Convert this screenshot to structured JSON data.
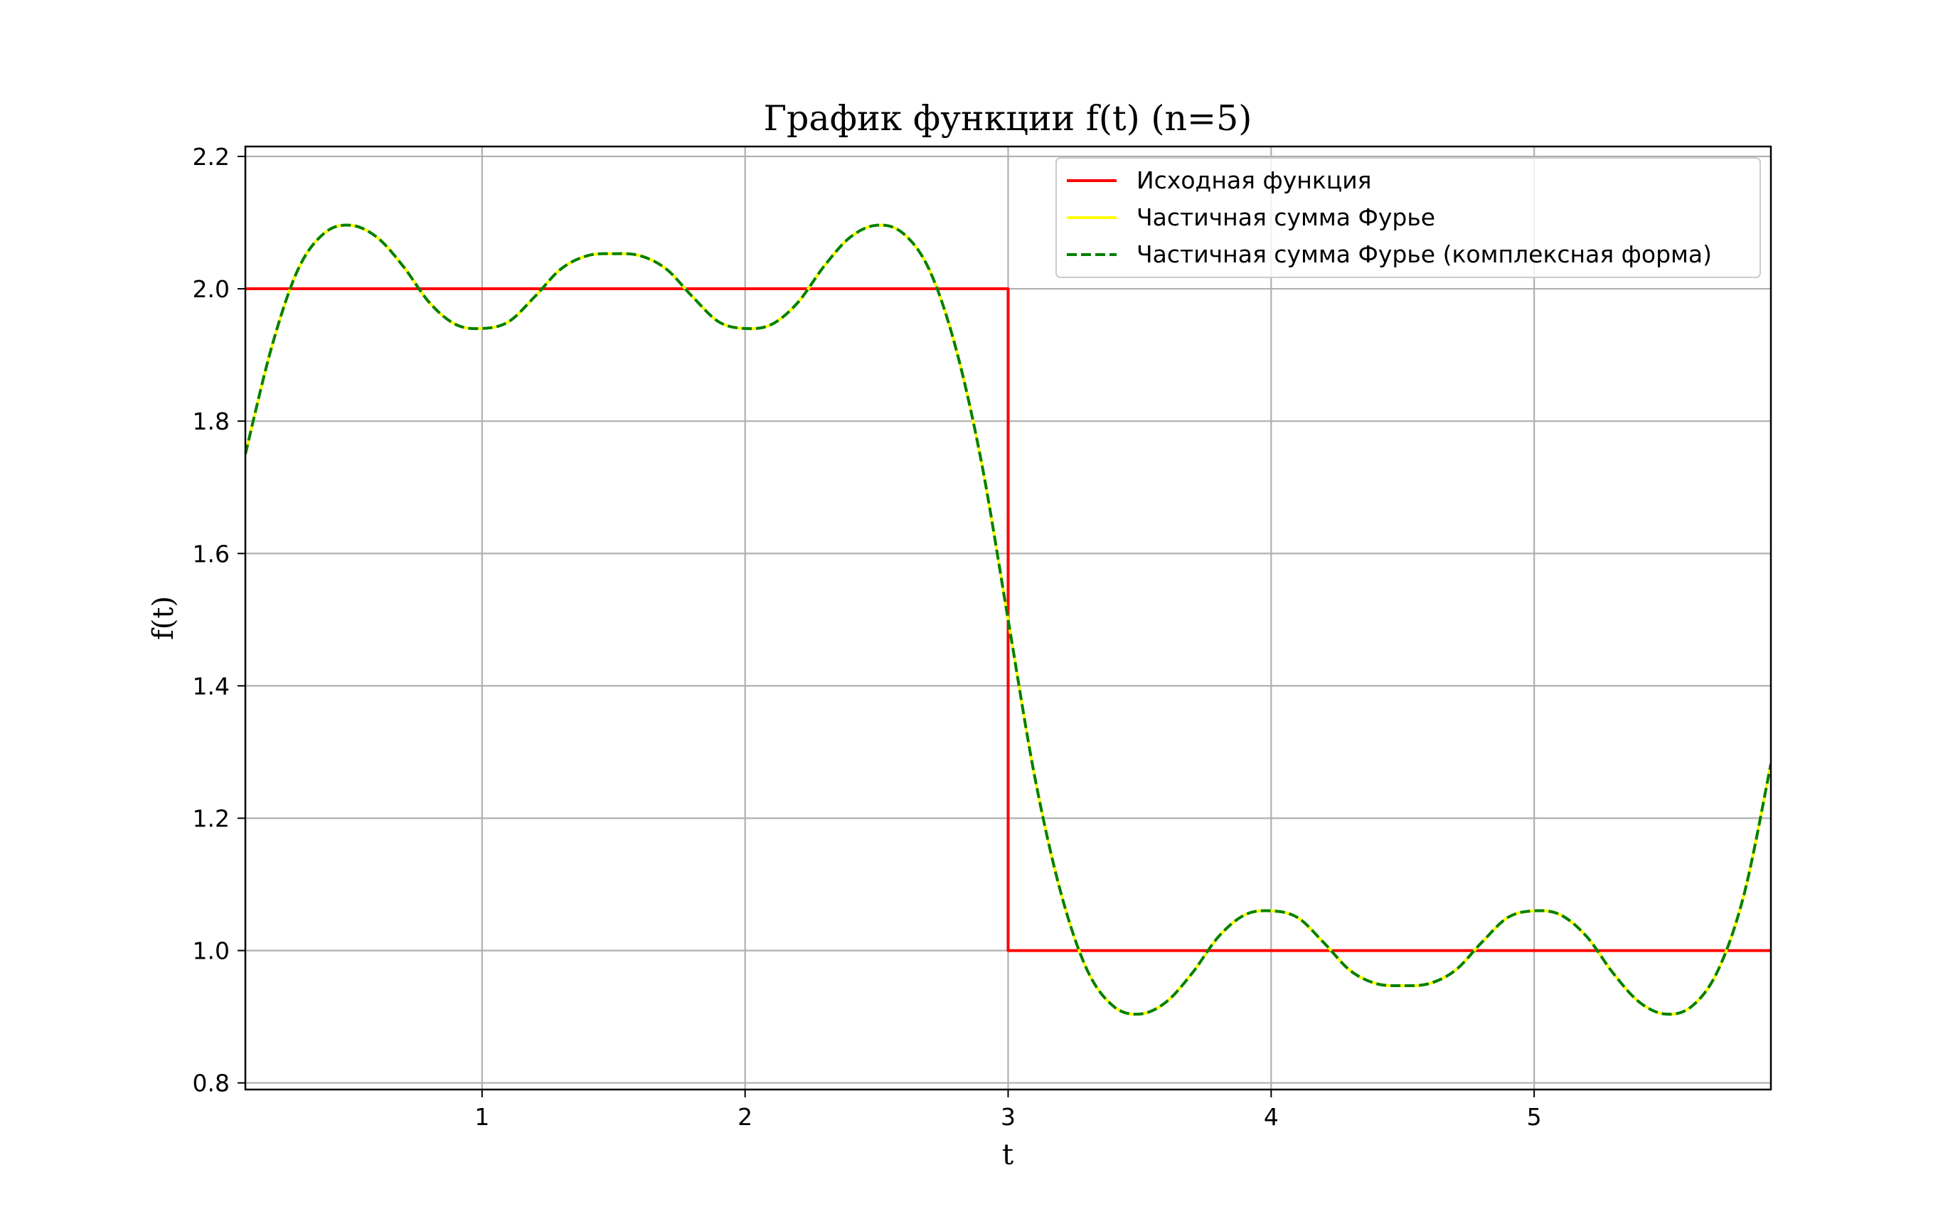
{
  "chart_data": {
    "type": "line",
    "title": "График функции f(t) (n=5)",
    "xlabel": "t",
    "ylabel": "f(t)",
    "xlim": [
      0.1,
      5.9
    ],
    "ylim": [
      0.79,
      2.215
    ],
    "xticks": [
      1,
      2,
      3,
      4,
      5
    ],
    "xtick_labels": [
      "1",
      "2",
      "3",
      "4",
      "5"
    ],
    "yticks": [
      0.8,
      1.0,
      1.2,
      1.4,
      1.6,
      1.8,
      2.0,
      2.2
    ],
    "ytick_labels": [
      "0.8",
      "1.0",
      "1.2",
      "1.4",
      "1.6",
      "1.8",
      "2.0",
      "2.2"
    ],
    "grid": true,
    "legend_position": "top-right",
    "series": [
      {
        "name": "Исходная функция",
        "color": "#ff0000",
        "style": "solid",
        "x": [
          0.1,
          3.0,
          3.0,
          5.9
        ],
        "y": [
          2.0,
          2.0,
          1.0,
          1.0
        ]
      },
      {
        "name": "Частичная сумма Фурье",
        "color": "#ffff00",
        "style": "solid",
        "x": [
          0.1,
          0.2,
          0.3,
          0.4,
          0.5,
          0.6,
          0.7,
          0.8,
          0.9,
          1.0,
          1.1,
          1.2,
          1.3,
          1.4,
          1.5,
          1.6,
          1.7,
          1.8,
          1.9,
          2.0,
          2.1,
          2.2,
          2.3,
          2.4,
          2.5,
          2.6,
          2.7,
          2.8,
          2.9,
          3.0,
          3.1,
          3.2,
          3.3,
          3.4,
          3.5,
          3.6,
          3.7,
          3.8,
          3.9,
          4.0,
          4.1,
          4.2,
          4.3,
          4.4,
          4.5,
          4.6,
          4.7,
          4.8,
          4.9,
          5.0,
          5.1,
          5.2,
          5.3,
          5.4,
          5.5,
          5.6,
          5.7,
          5.8,
          5.9
        ],
        "y": [
          1.75,
          1.912,
          2.029,
          2.084,
          2.096,
          2.078,
          2.034,
          1.979,
          1.946,
          1.94,
          1.95,
          1.988,
          2.03,
          2.05,
          2.053,
          2.05,
          2.03,
          1.988,
          1.95,
          1.94,
          1.946,
          1.979,
          2.034,
          2.078,
          2.096,
          2.084,
          2.029,
          1.912,
          1.735,
          1.5,
          1.265,
          1.088,
          0.971,
          0.916,
          0.904,
          0.922,
          0.966,
          1.021,
          1.054,
          1.06,
          1.05,
          1.012,
          0.97,
          0.95,
          0.947,
          0.95,
          0.97,
          1.012,
          1.05,
          1.06,
          1.054,
          1.021,
          0.966,
          0.922,
          0.904,
          0.916,
          0.971,
          1.088,
          1.282
        ]
      },
      {
        "name": "Частичная сумма Фурье (комплексная форма)",
        "color": "#008000",
        "style": "dashed",
        "x": [
          0.1,
          0.2,
          0.3,
          0.4,
          0.5,
          0.6,
          0.7,
          0.8,
          0.9,
          1.0,
          1.1,
          1.2,
          1.3,
          1.4,
          1.5,
          1.6,
          1.7,
          1.8,
          1.9,
          2.0,
          2.1,
          2.2,
          2.3,
          2.4,
          2.5,
          2.6,
          2.7,
          2.8,
          2.9,
          3.0,
          3.1,
          3.2,
          3.3,
          3.4,
          3.5,
          3.6,
          3.7,
          3.8,
          3.9,
          4.0,
          4.1,
          4.2,
          4.3,
          4.4,
          4.5,
          4.6,
          4.7,
          4.8,
          4.9,
          5.0,
          5.1,
          5.2,
          5.3,
          5.4,
          5.5,
          5.6,
          5.7,
          5.8,
          5.9
        ],
        "y": [
          1.75,
          1.912,
          2.029,
          2.084,
          2.096,
          2.078,
          2.034,
          1.979,
          1.946,
          1.94,
          1.95,
          1.988,
          2.03,
          2.05,
          2.053,
          2.05,
          2.03,
          1.988,
          1.95,
          1.94,
          1.946,
          1.979,
          2.034,
          2.078,
          2.096,
          2.084,
          2.029,
          1.912,
          1.735,
          1.5,
          1.265,
          1.088,
          0.971,
          0.916,
          0.904,
          0.922,
          0.966,
          1.021,
          1.054,
          1.06,
          1.05,
          1.012,
          0.97,
          0.95,
          0.947,
          0.95,
          0.97,
          1.012,
          1.05,
          1.06,
          1.054,
          1.021,
          0.966,
          0.922,
          0.904,
          0.916,
          0.971,
          1.088,
          1.282
        ]
      }
    ]
  }
}
